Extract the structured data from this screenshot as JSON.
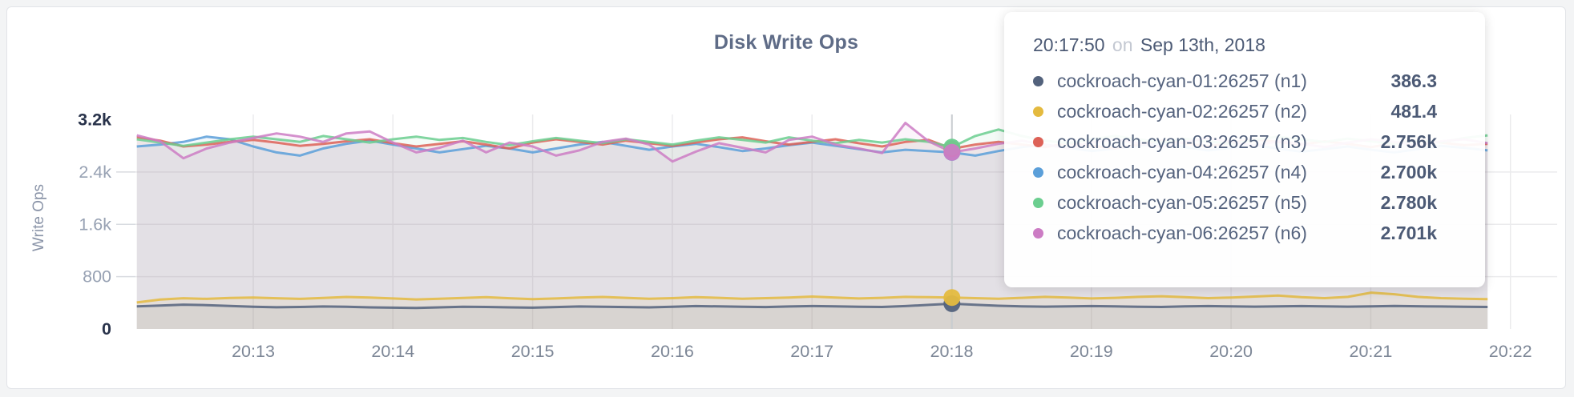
{
  "chart_data": {
    "type": "line",
    "title": "Disk Write Ops",
    "ylabel": "Write Ops",
    "xlabel": "",
    "grid": true,
    "ylim": [
      0,
      3200
    ],
    "x_start": "20:12:10",
    "x_interval_seconds": 10,
    "x_tick_labels": [
      "20:13",
      "20:14",
      "20:15",
      "20:16",
      "20:17",
      "20:18",
      "20:19",
      "20:20",
      "20:21",
      "20:22"
    ],
    "y_ticks": [
      {
        "value": 0,
        "label": "0",
        "strong": true
      },
      {
        "value": 800,
        "label": "800",
        "strong": false
      },
      {
        "value": 1600,
        "label": "1.6k",
        "strong": false
      },
      {
        "value": 2400,
        "label": "2.4k",
        "strong": false
      },
      {
        "value": 3200,
        "label": "3.2k",
        "strong": true
      }
    ],
    "hover": {
      "index": 35,
      "time": "20:17:50",
      "word": "on",
      "date": "Sep 13th, 2018"
    },
    "series": [
      {
        "name": "cockroach-cyan-01:26257 (n1)",
        "color": "#53627c",
        "hover_value": "386.3",
        "values": [
          345,
          358,
          372,
          365,
          352,
          340,
          332,
          336,
          344,
          340,
          331,
          326,
          321,
          330,
          340,
          336,
          330,
          326,
          335,
          344,
          340,
          335,
          330,
          340,
          350,
          345,
          340,
          335,
          344,
          350,
          346,
          340,
          336,
          350,
          368,
          386.3,
          370,
          355,
          346,
          341,
          346,
          350,
          345,
          340,
          336,
          345,
          350,
          346,
          341,
          346,
          350,
          345,
          341,
          346,
          351,
          348,
          344,
          340,
          336
        ]
      },
      {
        "name": "cockroach-cyan-02:26257 (n2)",
        "color": "#e4ba3f",
        "hover_value": "481.4",
        "values": [
          405,
          450,
          470,
          460,
          474,
          480,
          470,
          460,
          475,
          490,
          481,
          466,
          452,
          461,
          475,
          486,
          470,
          456,
          466,
          480,
          490,
          476,
          461,
          471,
          486,
          476,
          461,
          471,
          481,
          496,
          481,
          466,
          476,
          491,
          486,
          481.4,
          471,
          461,
          476,
          491,
          481,
          466,
          476,
          491,
          501,
          486,
          471,
          481,
          496,
          511,
          486,
          471,
          491,
          556,
          531,
          491,
          471,
          462,
          456
        ]
      },
      {
        "name": "cockroach-cyan-03:26257 (n3)",
        "color": "#dd6157",
        "hover_value": "2.756k",
        "values": [
          2930,
          2880,
          2790,
          2820,
          2860,
          2890,
          2850,
          2800,
          2830,
          2870,
          2900,
          2840,
          2790,
          2830,
          2870,
          2820,
          2760,
          2850,
          2900,
          2860,
          2820,
          2880,
          2840,
          2800,
          2850,
          2900,
          2930,
          2870,
          2820,
          2860,
          2900,
          2840,
          2790,
          2860,
          2890,
          2756,
          2820,
          2860,
          2820,
          2780,
          2840,
          2800,
          2760,
          2820,
          2880,
          2840,
          2790,
          2850,
          2900,
          2860,
          2820,
          2870,
          2830,
          2780,
          2840,
          2890,
          2850,
          2810,
          2830
        ]
      },
      {
        "name": "cockroach-cyan-04:26257 (n4)",
        "color": "#5b9fd9",
        "hover_value": "2.700k",
        "values": [
          2790,
          2820,
          2860,
          2940,
          2900,
          2790,
          2700,
          2650,
          2760,
          2830,
          2880,
          2820,
          2760,
          2700,
          2750,
          2800,
          2760,
          2700,
          2760,
          2820,
          2860,
          2800,
          2740,
          2790,
          2830,
          2780,
          2720,
          2760,
          2810,
          2850,
          2800,
          2750,
          2700,
          2740,
          2720,
          2700,
          2650,
          2720,
          2780,
          2820,
          2770,
          2720,
          2760,
          2800,
          2840,
          2780,
          2730,
          2770,
          2810,
          2760,
          2710,
          2750,
          2790,
          2740,
          2700,
          2750,
          2800,
          2770,
          2730
        ]
      },
      {
        "name": "cockroach-cyan-05:26257 (n5)",
        "color": "#6bce8f",
        "hover_value": "2.780k",
        "values": [
          2900,
          2850,
          2800,
          2850,
          2900,
          2940,
          2900,
          2860,
          2950,
          2900,
          2850,
          2900,
          2940,
          2890,
          2920,
          2860,
          2810,
          2870,
          2920,
          2880,
          2840,
          2900,
          2860,
          2820,
          2880,
          2930,
          2890,
          2850,
          2930,
          2880,
          2840,
          2890,
          2850,
          2900,
          2860,
          2780,
          2950,
          3050,
          2950,
          2880,
          2840,
          2900,
          2950,
          2900,
          2850,
          2910,
          2870,
          2830,
          2890,
          2940,
          2900,
          2860,
          2910,
          2870,
          2830,
          2880,
          2850,
          2920,
          2960
        ]
      },
      {
        "name": "cockroach-cyan-06:26257 (n6)",
        "color": "#cc7cc4",
        "hover_value": "2.701k",
        "values": [
          2960,
          2870,
          2610,
          2760,
          2850,
          2920,
          2990,
          2940,
          2860,
          2990,
          3020,
          2850,
          2700,
          2770,
          2880,
          2700,
          2850,
          2790,
          2650,
          2730,
          2860,
          2910,
          2820,
          2560,
          2710,
          2840,
          2770,
          2700,
          2890,
          2940,
          2820,
          2760,
          2690,
          3150,
          2870,
          2701,
          2760,
          2830,
          2880,
          2820,
          2760,
          2850,
          2900,
          2840,
          2780,
          2860,
          2920,
          2860,
          2800,
          2870,
          2830,
          2780,
          2850,
          2900,
          2860,
          2810,
          2870,
          2900,
          2840
        ]
      }
    ]
  }
}
